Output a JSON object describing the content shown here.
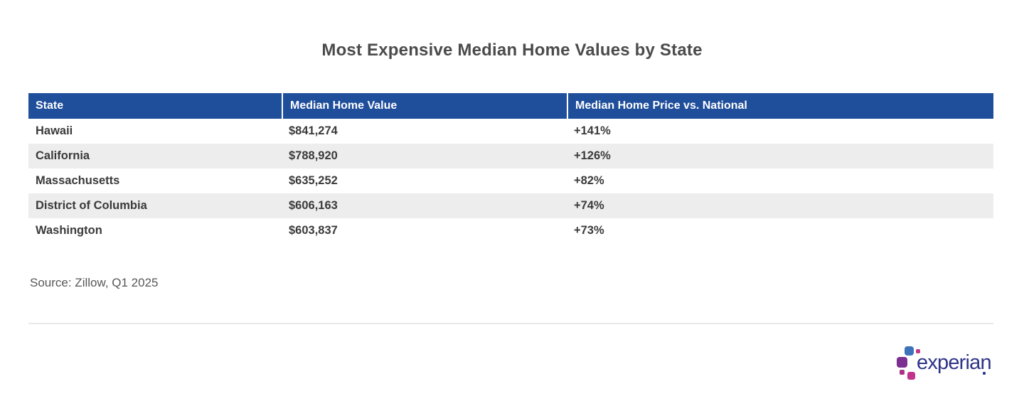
{
  "page": {
    "title": "Most Expensive Median Home Values by State",
    "source": "Source: Zillow, Q1 2025"
  },
  "table": {
    "columns": [
      "State",
      "Median Home Value",
      "Median Home Price vs. National"
    ],
    "rows": [
      {
        "state": "Hawaii",
        "value": "$841,274",
        "vs_national": "+141%"
      },
      {
        "state": "California",
        "value": "$788,920",
        "vs_national": "+126%"
      },
      {
        "state": "Massachusetts",
        "value": "$635,252",
        "vs_national": "+82%"
      },
      {
        "state": "District of Columbia",
        "value": "$606,163",
        "vs_national": "+74%"
      },
      {
        "state": "Washington",
        "value": "$603,837",
        "vs_national": "+73%"
      }
    ]
  },
  "logo": {
    "brand": "experian"
  },
  "colors": {
    "header_bg": "#1f4e9b",
    "header_text": "#ffffff",
    "stripe_bg": "#ededed",
    "body_text": "#3a3a3a",
    "title_text": "#4b4b4b",
    "source_text": "#575757",
    "divider": "#e9e9e9",
    "logo_navy": "#2e3487",
    "logo_blue": "#3e72ba",
    "logo_purple": "#7b3091",
    "logo_magenta": "#c2338b"
  },
  "chart_data": {
    "type": "table",
    "title": "Most Expensive Median Home Values by State",
    "columns": [
      "State",
      "Median Home Value",
      "Median Home Price vs. National"
    ],
    "categories": [
      "Hawaii",
      "California",
      "Massachusetts",
      "District of Columbia",
      "Washington"
    ],
    "series": [
      {
        "name": "Median Home Value",
        "values": [
          841274,
          788920,
          635252,
          606163,
          603837
        ]
      },
      {
        "name": "Median Home Price vs. National (%)",
        "values": [
          141,
          126,
          82,
          74,
          73
        ]
      }
    ],
    "source": "Source: Zillow, Q1 2025"
  }
}
